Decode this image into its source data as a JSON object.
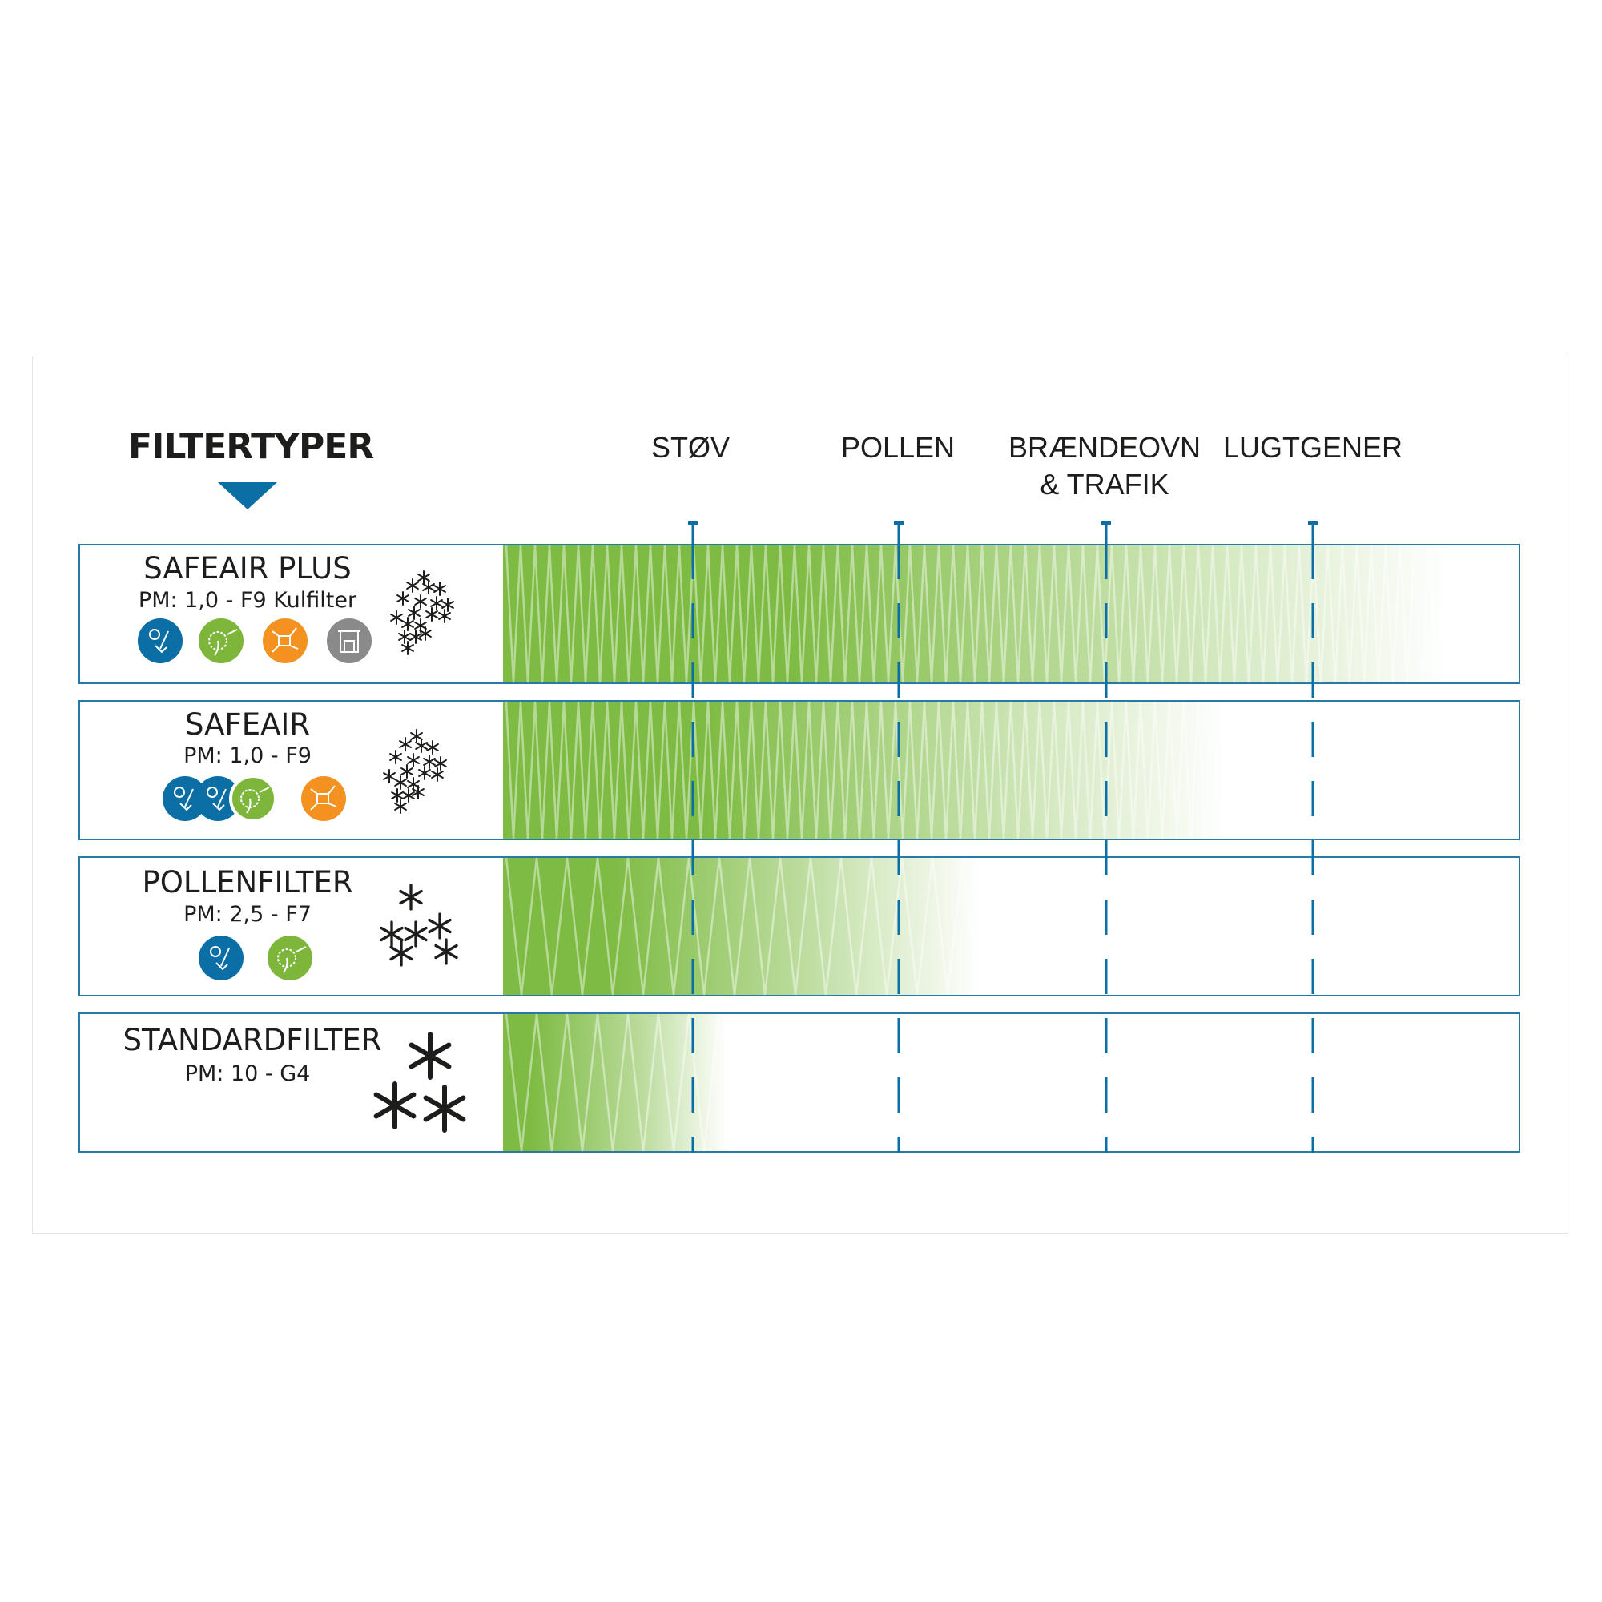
{
  "header": {
    "title": "FILTERTYPER"
  },
  "columns": [
    "STØV",
    "POLLEN",
    "BRÆNDEOVN\n& TRAFIK",
    "LUGTGENER"
  ],
  "colors": {
    "accent": "#0b6ea4",
    "green": "#7dbb42",
    "border": "#2878a8"
  },
  "filters": [
    {
      "name": "SAFEAIR PLUS",
      "spec": "PM: 1,0 - F9 Kulfilter",
      "icons": [
        "dust-icon",
        "pollen-icon",
        "molecule-icon",
        "fireplace-icon"
      ],
      "coverage": 0.93,
      "particle_size": "fine"
    },
    {
      "name": "SAFEAIR",
      "spec": "PM: 1,0 - F9",
      "icons": [
        "dust-icon",
        "dust-icon",
        "pollen-icon",
        "molecule-icon"
      ],
      "coverage": 0.71,
      "particle_size": "fine"
    },
    {
      "name": "POLLENFILTER",
      "spec": "PM: 2,5 - F7",
      "icons": [
        "dust-icon",
        "pollen-icon"
      ],
      "coverage": 0.47,
      "particle_size": "medium"
    },
    {
      "name": "STANDARDFILTER",
      "spec": "PM: 10 - G4",
      "icons": [],
      "coverage": 0.22,
      "particle_size": "coarse"
    }
  ]
}
